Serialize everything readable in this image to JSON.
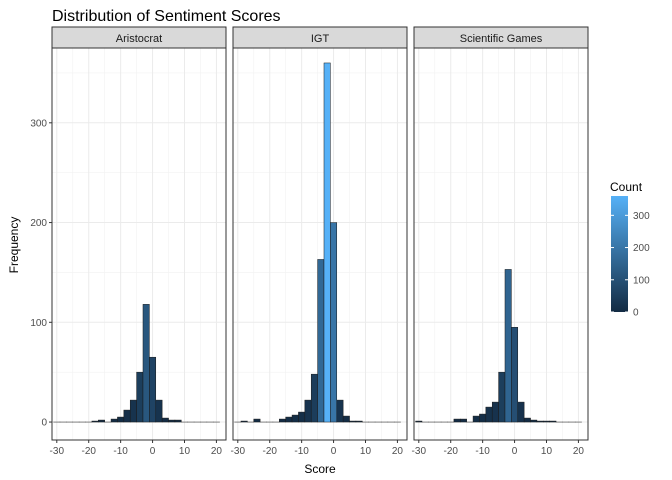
{
  "chart_data": {
    "type": "bar",
    "title": "Distribution of Sentiment Scores",
    "xlabel": "Score",
    "ylabel": "Frequency",
    "xlim": [
      -31.5,
      23
    ],
    "ylim": [
      -18,
      375
    ],
    "x_ticks": [
      -30,
      -20,
      -10,
      0,
      10,
      20
    ],
    "y_ticks": [
      0,
      100,
      200,
      300
    ],
    "bin_centers": [
      -30,
      -28,
      -26,
      -24,
      -22,
      -20,
      -18,
      -16,
      -14,
      -12,
      -10,
      -8,
      -6,
      -4,
      -2,
      0,
      2,
      4,
      6,
      8,
      10,
      12,
      14,
      16,
      18,
      20
    ],
    "grid": true,
    "fill_scale": {
      "name": "Count",
      "low_color": "#132b43",
      "high_color": "#56b1f7",
      "min": 0,
      "max": 360,
      "breaks": [
        0,
        100,
        200,
        300
      ],
      "legend_position": "right"
    },
    "bar_outline_color": "#1a1a1a",
    "panels": [
      {
        "name": "Aristocrat",
        "values": [
          0,
          0,
          0,
          0,
          0,
          0,
          1,
          2,
          0,
          3,
          5,
          12,
          22,
          50,
          118,
          65,
          22,
          4,
          2,
          2,
          0,
          0,
          0,
          0,
          0,
          0
        ]
      },
      {
        "name": "IGT",
        "values": [
          0,
          1,
          0,
          3,
          0,
          0,
          0,
          3,
          5,
          7,
          10,
          22,
          48,
          163,
          360,
          200,
          22,
          6,
          1,
          1,
          0,
          0,
          0,
          0,
          0,
          0
        ]
      },
      {
        "name": "Scientific Games",
        "values": [
          1,
          0,
          0,
          0,
          0,
          0,
          3,
          3,
          0,
          6,
          8,
          15,
          20,
          50,
          153,
          95,
          20,
          4,
          2,
          1,
          1,
          1,
          0,
          0,
          0,
          0
        ]
      }
    ]
  }
}
